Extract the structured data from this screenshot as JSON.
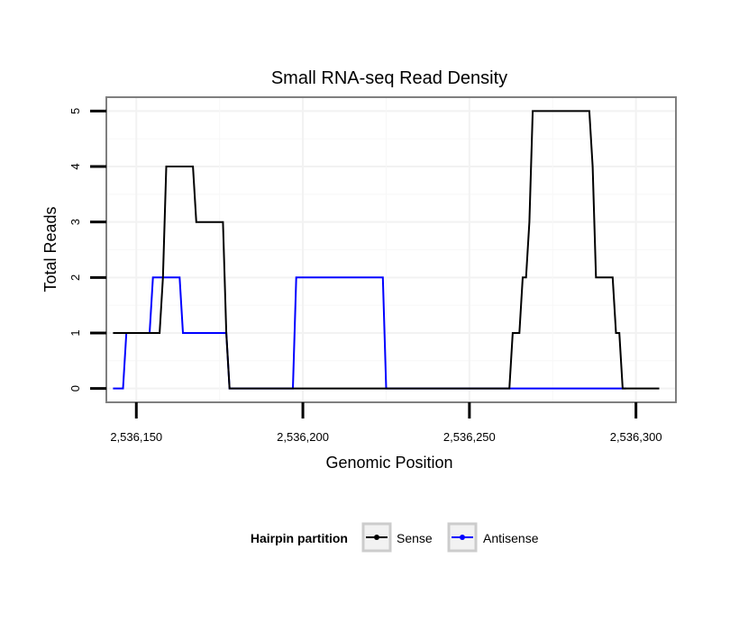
{
  "chart_data": {
    "type": "line",
    "title": "Small RNA-seq Read Density",
    "xlabel": "Genomic Position",
    "ylabel": "Total Reads",
    "xlim": [
      2536141,
      2536312
    ],
    "ylim": [
      -0.25,
      5.25
    ],
    "xticks": [
      2536150,
      2536200,
      2536250,
      2536300
    ],
    "xtick_labels": [
      "2,536,150",
      "2,536,200",
      "2,536,250",
      "2,536,300"
    ],
    "yticks": [
      0,
      1,
      2,
      3,
      4,
      5
    ],
    "ytick_labels": [
      "0",
      "1",
      "2",
      "3",
      "4",
      "5"
    ],
    "grid": true,
    "legend": {
      "title": "Hairpin partition",
      "position": "bottom"
    },
    "series": [
      {
        "name": "Sense",
        "color": "#000000",
        "x": [
          2536143,
          2536150,
          2536157,
          2536158,
          2536159,
          2536167,
          2536168,
          2536176,
          2536177,
          2536178,
          2536189,
          2536205,
          2536230,
          2536255,
          2536262,
          2536263,
          2536265,
          2536266,
          2536267,
          2536268,
          2536269,
          2536280,
          2536286,
          2536287,
          2536288,
          2536293,
          2536294,
          2536295,
          2536296,
          2536297,
          2536307
        ],
        "y": [
          1,
          1,
          1,
          2,
          4,
          4,
          3,
          3,
          1,
          0,
          0,
          0,
          0,
          0,
          0,
          1,
          1,
          2,
          2,
          3,
          5,
          5,
          5,
          4,
          2,
          2,
          1,
          1,
          0,
          0,
          0
        ]
      },
      {
        "name": "Antisense",
        "color": "#0000ff",
        "x": [
          2536143,
          2536146,
          2536147,
          2536154,
          2536155,
          2536163,
          2536164,
          2536177,
          2536178,
          2536197,
          2536198,
          2536224,
          2536225,
          2536250,
          2536262,
          2536280,
          2536297
        ],
        "y": [
          0,
          0,
          1,
          1,
          2,
          2,
          1,
          1,
          0,
          0,
          2,
          2,
          0,
          0,
          0,
          0,
          0
        ]
      }
    ]
  }
}
